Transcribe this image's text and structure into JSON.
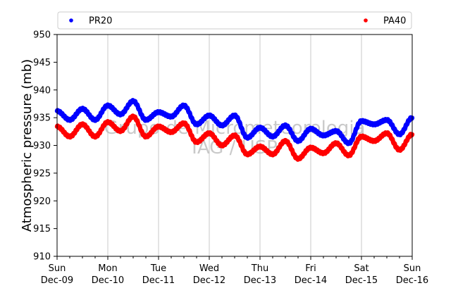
{
  "chart_data": {
    "type": "scatter",
    "ylabel": "Atmospheric pressure (mb)",
    "xlabel": "",
    "ylim": [
      910,
      950
    ],
    "yticks": [
      910,
      915,
      920,
      925,
      930,
      935,
      940,
      945,
      950
    ],
    "xlim_days": [
      0,
      7
    ],
    "xticks": [
      {
        "day": "Sun",
        "date": "Dec-09"
      },
      {
        "day": "Mon",
        "date": "Dec-10"
      },
      {
        "day": "Tue",
        "date": "Dec-11"
      },
      {
        "day": "Wed",
        "date": "Dec-12"
      },
      {
        "day": "Thu",
        "date": "Dec-13"
      },
      {
        "day": "Fri",
        "date": "Dec-14"
      },
      {
        "day": "Sat",
        "date": "Dec-15"
      },
      {
        "day": "Sun",
        "date": "Dec-16"
      }
    ],
    "grid": "vertical",
    "legend_position": "top",
    "watermark": [
      "Grupo de Micrometeorologia",
      "IAG / USP"
    ],
    "series": [
      {
        "name": "PR20",
        "color": "#0000ff",
        "x": [
          0,
          0.25,
          0.5,
          0.75,
          1,
          1.25,
          1.5,
          1.75,
          2,
          2.25,
          2.5,
          2.75,
          3,
          3.25,
          3.5,
          3.75,
          4,
          4.25,
          4.5,
          4.75,
          5,
          5.25,
          5.5,
          5.75,
          6,
          6.25,
          6.5,
          6.75,
          7
        ],
        "values": [
          936.2,
          934.6,
          936.6,
          934.6,
          937.2,
          935.6,
          938.0,
          934.6,
          936.0,
          935.2,
          937.2,
          933.8,
          935.4,
          933.6,
          935.4,
          931.4,
          933.2,
          931.6,
          933.6,
          930.8,
          933.0,
          931.8,
          932.6,
          930.4,
          934.4,
          933.8,
          934.6,
          932.0,
          935.0
        ]
      },
      {
        "name": "PA40",
        "color": "#ff0000",
        "x": [
          0,
          0.25,
          0.5,
          0.75,
          1,
          1.25,
          1.5,
          1.75,
          2,
          2.25,
          2.5,
          2.75,
          3,
          3.25,
          3.5,
          3.75,
          4,
          4.25,
          4.5,
          4.75,
          5,
          5.25,
          5.5,
          5.75,
          6,
          6.25,
          6.5,
          6.75,
          7
        ],
        "values": [
          933.4,
          931.6,
          933.8,
          931.6,
          934.2,
          932.6,
          935.2,
          931.6,
          933.4,
          932.4,
          934.0,
          930.6,
          932.2,
          930.0,
          931.8,
          928.4,
          929.8,
          928.4,
          930.8,
          927.6,
          929.6,
          928.6,
          930.4,
          928.2,
          931.6,
          930.8,
          932.2,
          929.2,
          932.0
        ]
      }
    ]
  }
}
